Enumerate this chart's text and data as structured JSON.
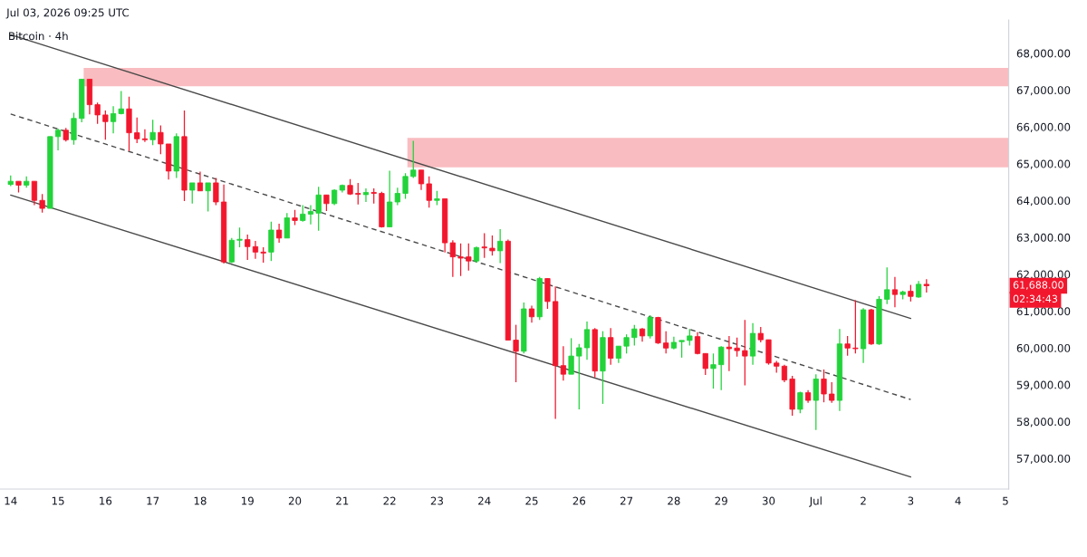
{
  "chart_data": {
    "type": "candlestick",
    "title": "Bitcoin · 4h",
    "subtitle": "Jul 03, 2026 09:25 UTC",
    "x": [
      "2026-06-14T00:00",
      "2026-06-14T04:00",
      "2026-06-14T08:00",
      "2026-06-14T12:00",
      "2026-06-14T16:00",
      "2026-06-14T20:00",
      "2026-06-15T00:00",
      "2026-06-15T04:00",
      "2026-06-15T08:00",
      "2026-06-15T12:00",
      "2026-06-15T16:00",
      "2026-06-15T20:00",
      "2026-06-16T00:00",
      "2026-06-16T04:00",
      "2026-06-16T08:00",
      "2026-06-16T12:00",
      "2026-06-16T16:00",
      "2026-06-16T20:00",
      "2026-06-17T00:00",
      "2026-06-17T04:00",
      "2026-06-17T08:00",
      "2026-06-17T12:00",
      "2026-06-17T16:00",
      "2026-06-17T20:00",
      "2026-06-18T00:00",
      "2026-06-18T04:00",
      "2026-06-18T08:00",
      "2026-06-18T12:00",
      "2026-06-18T16:00",
      "2026-06-18T20:00",
      "2026-06-19T00:00",
      "2026-06-19T04:00",
      "2026-06-19T08:00",
      "2026-06-19T12:00",
      "2026-06-19T16:00",
      "2026-06-19T20:00",
      "2026-06-20T00:00",
      "2026-06-20T04:00",
      "2026-06-20T08:00",
      "2026-06-20T12:00",
      "2026-06-20T16:00",
      "2026-06-20T20:00",
      "2026-06-21T00:00",
      "2026-06-21T04:00",
      "2026-06-21T08:00",
      "2026-06-21T12:00",
      "2026-06-21T16:00",
      "2026-06-21T20:00",
      "2026-06-22T00:00",
      "2026-06-22T04:00",
      "2026-06-22T08:00",
      "2026-06-22T12:00",
      "2026-06-22T16:00",
      "2026-06-22T20:00",
      "2026-06-23T00:00",
      "2026-06-23T04:00",
      "2026-06-23T08:00",
      "2026-06-23T12:00",
      "2026-06-23T16:00",
      "2026-06-23T20:00",
      "2026-06-24T00:00",
      "2026-06-24T04:00",
      "2026-06-24T08:00",
      "2026-06-24T12:00",
      "2026-06-24T16:00",
      "2026-06-24T20:00",
      "2026-06-25T00:00",
      "2026-06-25T04:00",
      "2026-06-25T08:00",
      "2026-06-25T12:00",
      "2026-06-25T16:00",
      "2026-06-25T20:00",
      "2026-06-26T00:00",
      "2026-06-26T04:00",
      "2026-06-26T08:00",
      "2026-06-26T12:00",
      "2026-06-26T16:00",
      "2026-06-26T20:00",
      "2026-06-27T00:00",
      "2026-06-27T04:00",
      "2026-06-27T08:00",
      "2026-06-27T12:00",
      "2026-06-27T16:00",
      "2026-06-27T20:00",
      "2026-06-28T00:00",
      "2026-06-28T04:00",
      "2026-06-28T08:00",
      "2026-06-28T12:00",
      "2026-06-28T16:00",
      "2026-06-28T20:00",
      "2026-06-29T00:00",
      "2026-06-29T04:00",
      "2026-06-29T08:00",
      "2026-06-29T12:00",
      "2026-06-29T16:00",
      "2026-06-29T20:00",
      "2026-06-30T00:00",
      "2026-06-30T04:00",
      "2026-06-30T08:00",
      "2026-06-30T12:00",
      "2026-06-30T16:00",
      "2026-06-30T20:00",
      "2026-07-01T00:00",
      "2026-07-01T04:00",
      "2026-07-01T08:00",
      "2026-07-01T12:00",
      "2026-07-01T16:00",
      "2026-07-01T20:00",
      "2026-07-02T00:00",
      "2026-07-02T04:00",
      "2026-07-02T08:00",
      "2026-07-02T12:00",
      "2026-07-02T16:00",
      "2026-07-02T20:00",
      "2026-07-03T00:00",
      "2026-07-03T04:00",
      "2026-07-03T08:00"
    ],
    "ohlc": [
      [
        64438,
        64680,
        64394,
        64524
      ],
      [
        64524,
        64524,
        64221,
        64420
      ],
      [
        64420,
        64654,
        64351,
        64524
      ],
      [
        64524,
        64524,
        63875,
        64005
      ],
      [
        64005,
        64178,
        63676,
        63788
      ],
      [
        63788,
        65736,
        63788,
        65736
      ],
      [
        65736,
        65953,
        65364,
        65909
      ],
      [
        65909,
        65970,
        65606,
        65650
      ],
      [
        65650,
        66385,
        65520,
        66230
      ],
      [
        66230,
        67294,
        66126,
        67294
      ],
      [
        67294,
        67294,
        66342,
        66602
      ],
      [
        66602,
        66663,
        66083,
        66325
      ],
      [
        66325,
        66446,
        65650,
        66143
      ],
      [
        66143,
        66559,
        65823,
        66360
      ],
      [
        66360,
        66974,
        66342,
        66489
      ],
      [
        66489,
        66818,
        65347,
        65840
      ],
      [
        65840,
        66256,
        65563,
        65676
      ],
      [
        65676,
        65935,
        65589,
        65650
      ],
      [
        65650,
        66195,
        65503,
        65849
      ],
      [
        65849,
        66039,
        65260,
        65537
      ],
      [
        65537,
        65537,
        64568,
        64801
      ],
      [
        64801,
        65823,
        64611,
        65736
      ],
      [
        65736,
        66446,
        63987,
        64282
      ],
      [
        64282,
        64481,
        63918,
        64481
      ],
      [
        64481,
        64784,
        64264,
        64264
      ],
      [
        64264,
        64481,
        63702,
        64481
      ],
      [
        64481,
        64611,
        63875,
        63962
      ],
      [
        63962,
        64438,
        62291,
        62334
      ],
      [
        62334,
        62983,
        62300,
        62923
      ],
      [
        62923,
        63269,
        62732,
        62949
      ],
      [
        62940,
        63079,
        62386,
        62750
      ],
      [
        62750,
        62905,
        62421,
        62602
      ],
      [
        62602,
        62732,
        62317,
        62576
      ],
      [
        62602,
        63425,
        62360,
        63200
      ],
      [
        63200,
        63373,
        62854,
        62983
      ],
      [
        62983,
        63659,
        62983,
        63529
      ],
      [
        63529,
        63745,
        63338,
        63459
      ],
      [
        63459,
        63875,
        63425,
        63633
      ],
      [
        63633,
        63875,
        63356,
        63702
      ],
      [
        63659,
        64377,
        63182,
        64152
      ],
      [
        64152,
        64152,
        63719,
        63918
      ],
      [
        63918,
        64308,
        63875,
        64282
      ],
      [
        64282,
        64438,
        64221,
        64412
      ],
      [
        64412,
        64585,
        64152,
        64178
      ],
      [
        64195,
        64481,
        63892,
        64170
      ],
      [
        64161,
        64334,
        63962,
        64221
      ],
      [
        64221,
        64334,
        63918,
        64195
      ],
      [
        64195,
        64239,
        63269,
        63287
      ],
      [
        63287,
        64810,
        63287,
        63962
      ],
      [
        63962,
        64351,
        63875,
        64195
      ],
      [
        64195,
        64741,
        64048,
        64654
      ],
      [
        64654,
        65624,
        64611,
        64827
      ],
      [
        64827,
        64827,
        64290,
        64455
      ],
      [
        64455,
        64654,
        63806,
        64005
      ],
      [
        64005,
        64264,
        63875,
        64048
      ],
      [
        64048,
        64048,
        62594,
        62854
      ],
      [
        62854,
        62923,
        61927,
        62472
      ],
      [
        62472,
        62836,
        61953,
        62438
      ],
      [
        62472,
        62836,
        62100,
        62360
      ],
      [
        62360,
        62750,
        62317,
        62724
      ],
      [
        62741,
        63113,
        62447,
        62715
      ],
      [
        62707,
        63053,
        62507,
        62637
      ],
      [
        62637,
        63226,
        62300,
        62897
      ],
      [
        62897,
        62940,
        60213,
        60213
      ],
      [
        60213,
        60628,
        59070,
        59910
      ],
      [
        59910,
        61235,
        59849,
        61061
      ],
      [
        61061,
        61148,
        60689,
        60845
      ],
      [
        60845,
        61927,
        60758,
        61884
      ],
      [
        61884,
        61884,
        61061,
        61260
      ],
      [
        61260,
        61668,
        58075,
        59520
      ],
      [
        59520,
        60049,
        59114,
        59287
      ],
      [
        59287,
        60265,
        59287,
        59780
      ],
      [
        59780,
        60109,
        58335,
        60005
      ],
      [
        60005,
        60715,
        59676,
        60499
      ],
      [
        60499,
        60542,
        59200,
        59373
      ],
      [
        59373,
        60455,
        58482,
        60282
      ],
      [
        60282,
        60542,
        59546,
        59720
      ],
      [
        59720,
        60049,
        59590,
        60049
      ],
      [
        60049,
        60369,
        59849,
        60282
      ],
      [
        60282,
        60628,
        60066,
        60516
      ],
      [
        60516,
        60542,
        60170,
        60326
      ],
      [
        60326,
        60888,
        60256,
        60828
      ],
      [
        60828,
        60845,
        60109,
        60135
      ],
      [
        60135,
        60455,
        59849,
        59997
      ],
      [
        59997,
        60308,
        59962,
        60152
      ],
      [
        60170,
        60204,
        59737,
        60204
      ],
      [
        60204,
        60516,
        60066,
        60326
      ],
      [
        60308,
        60430,
        59823,
        59849
      ],
      [
        59849,
        59849,
        59269,
        59442
      ],
      [
        59442,
        59849,
        58897,
        59546
      ],
      [
        59546,
        60049,
        58854,
        60023
      ],
      [
        60023,
        60326,
        59373,
        59979
      ],
      [
        59997,
        60282,
        59763,
        59927
      ],
      [
        59927,
        60759,
        58983,
        59780
      ],
      [
        59780,
        60672,
        59546,
        60395
      ],
      [
        60395,
        60568,
        60152,
        60222
      ],
      [
        60222,
        60222,
        59546,
        59590
      ],
      [
        59590,
        59650,
        59330,
        59505
      ],
      [
        59505,
        59546,
        59070,
        59131
      ],
      [
        59157,
        59244,
        58161,
        58335
      ],
      [
        58335,
        58811,
        58231,
        58785
      ],
      [
        58785,
        58854,
        58508,
        58577
      ],
      [
        58577,
        59287,
        57772,
        59157
      ],
      [
        59157,
        59416,
        58525,
        58750
      ],
      [
        58750,
        59070,
        58508,
        58577
      ],
      [
        58577,
        60516,
        58291,
        60109
      ],
      [
        60109,
        60326,
        59789,
        59997
      ],
      [
        59997,
        61295,
        59849,
        59979
      ],
      [
        59979,
        61079,
        59590,
        61035
      ],
      [
        61035,
        61061,
        60083,
        60109
      ],
      [
        60109,
        61408,
        60083,
        61321
      ],
      [
        61321,
        62187,
        61191,
        61581
      ],
      [
        61581,
        61927,
        61105,
        61451
      ],
      [
        61451,
        61555,
        61321,
        61520
      ],
      [
        61538,
        61711,
        61260,
        61399
      ],
      [
        61382,
        61815,
        61364,
        61728
      ],
      [
        61728,
        61867,
        61503,
        61688
      ]
    ],
    "colors": [
      "#22d33a",
      "#f2172d",
      "#22d33a",
      "#f2172d",
      "#f2172d",
      "#22d33a",
      "#22d33a",
      "#f2172d",
      "#22d33a",
      "#22d33a",
      "#f2172d",
      "#f2172d",
      "#f2172d",
      "#22d33a",
      "#22d33a",
      "#f2172d",
      "#f2172d",
      "#f2172d",
      "#22d33a",
      "#f2172d",
      "#f2172d",
      "#22d33a",
      "#f2172d",
      "#22d33a",
      "#f2172d",
      "#22d33a",
      "#f2172d",
      "#f2172d",
      "#22d33a",
      "#22d33a",
      "#f2172d",
      "#f2172d",
      "#f2172d",
      "#22d33a",
      "#f2172d",
      "#22d33a",
      "#f2172d",
      "#22d33a",
      "#22d33a",
      "#22d33a",
      "#f2172d",
      "#22d33a",
      "#22d33a",
      "#f2172d",
      "#f2172d",
      "#22d33a",
      "#f2172d",
      "#f2172d",
      "#22d33a",
      "#22d33a",
      "#22d33a",
      "#22d33a",
      "#f2172d",
      "#f2172d",
      "#22d33a",
      "#f2172d",
      "#f2172d",
      "#f2172d",
      "#f2172d",
      "#22d33a",
      "#f2172d",
      "#f2172d",
      "#22d33a",
      "#f2172d",
      "#f2172d",
      "#22d33a",
      "#f2172d",
      "#22d33a",
      "#f2172d",
      "#f2172d",
      "#f2172d",
      "#22d33a",
      "#22d33a",
      "#22d33a",
      "#f2172d",
      "#22d33a",
      "#f2172d",
      "#22d33a",
      "#22d33a",
      "#22d33a",
      "#f2172d",
      "#22d33a",
      "#f2172d",
      "#f2172d",
      "#22d33a",
      "#22d33a",
      "#22d33a",
      "#f2172d",
      "#f2172d",
      "#22d33a",
      "#22d33a",
      "#f2172d",
      "#f2172d",
      "#f2172d",
      "#22d33a",
      "#f2172d",
      "#f2172d",
      "#f2172d",
      "#f2172d",
      "#f2172d",
      "#22d33a",
      "#f2172d",
      "#22d33a",
      "#f2172d",
      "#f2172d",
      "#22d33a",
      "#f2172d",
      "#f2172d",
      "#22d33a",
      "#f2172d",
      "#22d33a",
      "#22d33a",
      "#f2172d",
      "#22d33a",
      "#f2172d",
      "#22d33a",
      "#f2172d"
    ],
    "series": [
      {
        "type": "area",
        "x": [
          "2026-06-15T13:00",
          "2026-07-05T01:40"
        ],
        "lower": [
          67100,
          67100
        ],
        "upper": [
          67600,
          67600
        ],
        "values": [
          null,
          null
        ],
        "color": "#f9bcc0"
      },
      {
        "type": "area",
        "x": [
          "2026-06-22T09:00",
          "2026-07-05T01:40"
        ],
        "lower": [
          64900,
          64900
        ],
        "upper": [
          65700,
          65700
        ],
        "values": [
          null,
          null
        ],
        "color": "#f9bcc0"
      },
      {
        "type": "line",
        "x": [
          "2026-06-14T00:00",
          "2026-07-03T00:00"
        ],
        "values": [
          68500,
          60800
        ],
        "color": "#4a4a4a",
        "line_style": "solid"
      },
      {
        "type": "line",
        "x": [
          "2026-06-14T00:00",
          "2026-07-03T00:00"
        ],
        "values": [
          66350,
          58600
        ],
        "color": "#4a4a4a",
        "line_style": "dashed"
      },
      {
        "type": "line",
        "x": [
          "2026-06-14T00:00",
          "2026-07-03T00:00"
        ],
        "values": [
          64150,
          56500
        ],
        "color": "#4a4a4a",
        "line_style": "solid"
      }
    ],
    "annotations": [
      "61,688.00",
      "02:34:43"
    ],
    "xlim": [
      "2026-06-13T18:36",
      "2026-07-05T01:40"
    ],
    "ylim": [
      56170,
      68900
    ],
    "xticks": [
      {
        "value": "2026-06-14",
        "label": "14"
      },
      {
        "value": "2026-06-15",
        "label": "15"
      },
      {
        "value": "2026-06-16",
        "label": "16"
      },
      {
        "value": "2026-06-17",
        "label": "17"
      },
      {
        "value": "2026-06-18",
        "label": "18"
      },
      {
        "value": "2026-06-19",
        "label": "19"
      },
      {
        "value": "2026-06-20",
        "label": "20"
      },
      {
        "value": "2026-06-21",
        "label": "21"
      },
      {
        "value": "2026-06-22",
        "label": "22"
      },
      {
        "value": "2026-06-23",
        "label": "23"
      },
      {
        "value": "2026-06-24",
        "label": "24"
      },
      {
        "value": "2026-06-25",
        "label": "25"
      },
      {
        "value": "2026-06-26",
        "label": "26"
      },
      {
        "value": "2026-06-27",
        "label": "27"
      },
      {
        "value": "2026-06-28",
        "label": "28"
      },
      {
        "value": "2026-06-29",
        "label": "29"
      },
      {
        "value": "2026-06-30",
        "label": "30"
      },
      {
        "value": "2026-07-01",
        "label": "Jul"
      },
      {
        "value": "2026-07-02",
        "label": "2"
      },
      {
        "value": "2026-07-03",
        "label": "3"
      },
      {
        "value": "2026-07-04",
        "label": "4"
      },
      {
        "value": "2026-07-05",
        "label": "5"
      }
    ],
    "yticks": [
      {
        "value": 57000,
        "label": "57,000.00"
      },
      {
        "value": 58000,
        "label": "58,000.00"
      },
      {
        "value": 59000,
        "label": "59,000.00"
      },
      {
        "value": 60000,
        "label": "60,000.00"
      },
      {
        "value": 61000,
        "label": "61,000.00"
      },
      {
        "value": 62000,
        "label": "62,000.00"
      },
      {
        "value": 63000,
        "label": "63,000.00"
      },
      {
        "value": 64000,
        "label": "64,000.00"
      },
      {
        "value": 65000,
        "label": "65,000.00"
      },
      {
        "value": 66000,
        "label": "66,000.00"
      },
      {
        "value": 67000,
        "label": "67,000.00"
      },
      {
        "value": 68000,
        "label": "68,000.00"
      }
    ],
    "grid": false
  }
}
